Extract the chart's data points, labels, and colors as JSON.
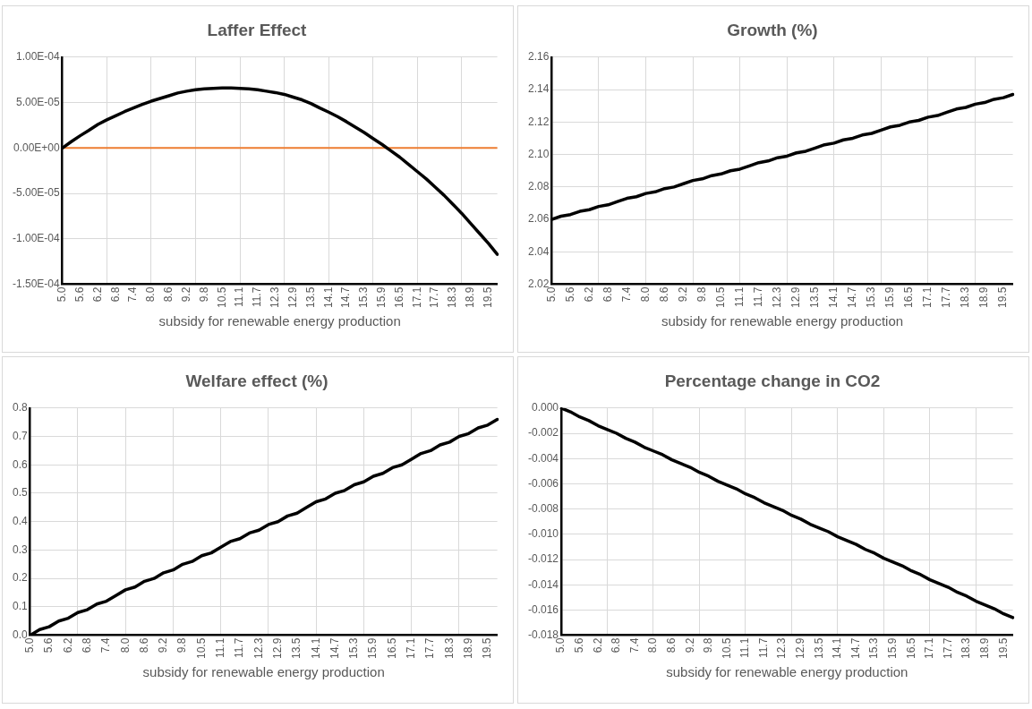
{
  "chart_data": [
    {
      "type": "line",
      "title": "Laffer Effect",
      "xlabel": "subsidy for renewable energy production",
      "categories": [
        "5.0",
        null,
        "5.6",
        null,
        "6.2",
        null,
        "6.8",
        null,
        "7.4",
        null,
        "8.0",
        null,
        "8.6",
        null,
        "9.2",
        null,
        "9.8",
        null,
        "10.5",
        null,
        "11.1",
        null,
        "11.7",
        null,
        "12.3",
        null,
        "12.9",
        null,
        "13.5",
        null,
        "14.1",
        null,
        "14.7",
        null,
        "15.3",
        null,
        "15.9",
        null,
        "16.5",
        null,
        "17.1",
        null,
        "17.7",
        null,
        "18.3",
        null,
        "18.9",
        null,
        "19.5",
        null
      ],
      "series": [
        {
          "color": "#000000",
          "values": [
            0,
            7e-06,
            1.35e-05,
            1.95e-05,
            2.6e-05,
            3.1e-05,
            3.55e-05,
            4e-05,
            4.4e-05,
            4.8e-05,
            5.15e-05,
            5.45e-05,
            5.75e-05,
            6.05e-05,
            6.25e-05,
            6.4e-05,
            6.5e-05,
            6.55e-05,
            6.6e-05,
            6.6e-05,
            6.55e-05,
            6.5e-05,
            6.4e-05,
            6.25e-05,
            6.1e-05,
            5.9e-05,
            5.6e-05,
            5.3e-05,
            4.9e-05,
            4.4e-05,
            3.95e-05,
            3.45e-05,
            2.9e-05,
            2.3e-05,
            1.7e-05,
            1.05e-05,
            4e-06,
            -3e-06,
            -1e-05,
            -1.8e-05,
            -2.6e-05,
            -3.4e-05,
            -4.3e-05,
            -5.2e-05,
            -6.2e-05,
            -7.2e-05,
            -8.3e-05,
            -9.4e-05,
            -0.000105,
            -0.000117
          ]
        }
      ],
      "ylim": [
        -0.00015,
        0.0001
      ],
      "yticks": [
        {
          "value": -0.00015,
          "label": "-1.50E-04"
        },
        {
          "value": -0.0001,
          "label": "-1.00E-04"
        },
        {
          "value": -5e-05,
          "label": "-5.00E-05"
        },
        {
          "value": 0,
          "label": "0.00E+00"
        },
        {
          "value": 5e-05,
          "label": "5.00E-05"
        },
        {
          "value": 0.0001,
          "label": "1.00E-04"
        }
      ],
      "ref_lines": [
        {
          "axis": "y",
          "value": 0,
          "color": "#ed7d31"
        }
      ],
      "grid": true,
      "legend": false,
      "marker": "none",
      "line_style": "solid"
    },
    {
      "type": "line",
      "title": "Growth (%)",
      "xlabel": "subsidy for renewable energy production",
      "categories": [
        "5.0",
        null,
        "5.6",
        null,
        "6.2",
        null,
        "6.8",
        null,
        "7.4",
        null,
        "8.0",
        null,
        "8.6",
        null,
        "9.2",
        null,
        "9.8",
        null,
        "10.5",
        null,
        "11.1",
        null,
        "11.7",
        null,
        "12.3",
        null,
        "12.9",
        null,
        "13.5",
        null,
        "14.1",
        null,
        "14.7",
        null,
        "15.3",
        null,
        "15.9",
        null,
        "16.5",
        null,
        "17.1",
        null,
        "17.7",
        null,
        "18.3",
        null,
        "18.9",
        null,
        "19.5",
        null
      ],
      "series": [
        {
          "color": "#000000",
          "values": [
            2.06,
            2.062,
            2.063,
            2.065,
            2.066,
            2.068,
            2.069,
            2.071,
            2.073,
            2.074,
            2.076,
            2.077,
            2.079,
            2.08,
            2.082,
            2.084,
            2.085,
            2.087,
            2.088,
            2.09,
            2.091,
            2.093,
            2.095,
            2.096,
            2.098,
            2.099,
            2.101,
            2.102,
            2.104,
            2.106,
            2.107,
            2.109,
            2.11,
            2.112,
            2.113,
            2.115,
            2.117,
            2.118,
            2.12,
            2.121,
            2.123,
            2.124,
            2.126,
            2.128,
            2.129,
            2.131,
            2.132,
            2.134,
            2.135,
            2.137
          ]
        }
      ],
      "ylim": [
        2.02,
        2.16
      ],
      "yticks": [
        {
          "value": 2.02,
          "label": "2.02"
        },
        {
          "value": 2.04,
          "label": "2.04"
        },
        {
          "value": 2.06,
          "label": "2.06"
        },
        {
          "value": 2.08,
          "label": "2.08"
        },
        {
          "value": 2.1,
          "label": "2.10"
        },
        {
          "value": 2.12,
          "label": "2.12"
        },
        {
          "value": 2.14,
          "label": "2.14"
        },
        {
          "value": 2.16,
          "label": "2.16"
        }
      ],
      "grid": true,
      "legend": false,
      "marker": "none",
      "line_style": "solid"
    },
    {
      "type": "line",
      "title": "Welfare effect (%)",
      "xlabel": "subsidy for renewable energy production",
      "categories": [
        "5.0",
        null,
        "5.6",
        null,
        "6.2",
        null,
        "6.8",
        null,
        "7.4",
        null,
        "8.0",
        null,
        "8.6",
        null,
        "9.2",
        null,
        "9.8",
        null,
        "10.5",
        null,
        "11.1",
        null,
        "11.7",
        null,
        "12.3",
        null,
        "12.9",
        null,
        "13.5",
        null,
        "14.1",
        null,
        "14.7",
        null,
        "15.3",
        null,
        "15.9",
        null,
        "16.5",
        null,
        "17.1",
        null,
        "17.7",
        null,
        "18.3",
        null,
        "18.9",
        null,
        "19.5",
        null
      ],
      "series": [
        {
          "color": "#000000",
          "values": [
            0,
            0.02,
            0.03,
            0.05,
            0.06,
            0.08,
            0.09,
            0.11,
            0.12,
            0.14,
            0.16,
            0.17,
            0.19,
            0.2,
            0.22,
            0.23,
            0.25,
            0.26,
            0.28,
            0.29,
            0.31,
            0.33,
            0.34,
            0.36,
            0.37,
            0.39,
            0.4,
            0.42,
            0.43,
            0.45,
            0.47,
            0.48,
            0.5,
            0.51,
            0.53,
            0.54,
            0.56,
            0.57,
            0.59,
            0.6,
            0.62,
            0.64,
            0.65,
            0.67,
            0.68,
            0.7,
            0.71,
            0.73,
            0.74,
            0.76
          ]
        }
      ],
      "ylim": [
        0,
        0.8
      ],
      "yticks": [
        {
          "value": 0,
          "label": "0.0"
        },
        {
          "value": 0.1,
          "label": "0.1"
        },
        {
          "value": 0.2,
          "label": "0.2"
        },
        {
          "value": 0.3,
          "label": "0.3"
        },
        {
          "value": 0.4,
          "label": "0.4"
        },
        {
          "value": 0.5,
          "label": "0.5"
        },
        {
          "value": 0.6,
          "label": "0.6"
        },
        {
          "value": 0.7,
          "label": "0.7"
        },
        {
          "value": 0.8,
          "label": "0.8"
        }
      ],
      "grid": true,
      "legend": false,
      "marker": "none",
      "line_style": "solid"
    },
    {
      "type": "line",
      "title": "Percentage change in CO2",
      "xlabel": "subsidy for renewable energy production",
      "categories": [
        "5.0",
        null,
        "5.6",
        null,
        "6.2",
        null,
        "6.8",
        null,
        "7.4",
        null,
        "8.0",
        null,
        "8.6",
        null,
        "9.2",
        null,
        "9.8",
        null,
        "10.5",
        null,
        "11.1",
        null,
        "11.7",
        null,
        "12.3",
        null,
        "12.9",
        null,
        "13.5",
        null,
        "14.1",
        null,
        "14.7",
        null,
        "15.3",
        null,
        "15.9",
        null,
        "16.5",
        null,
        "17.1",
        null,
        "17.7",
        null,
        "18.3",
        null,
        "18.9",
        null,
        "19.5",
        null
      ],
      "series": [
        {
          "color": "#000000",
          "values": [
            0,
            -0.0003,
            -0.0007,
            -0.001,
            -0.0014,
            -0.0017,
            -0.002,
            -0.0024,
            -0.0027,
            -0.0031,
            -0.0034,
            -0.0037,
            -0.0041,
            -0.0044,
            -0.0047,
            -0.0051,
            -0.0054,
            -0.0058,
            -0.0061,
            -0.0064,
            -0.0068,
            -0.0071,
            -0.0075,
            -0.0078,
            -0.0081,
            -0.0085,
            -0.0088,
            -0.0092,
            -0.0095,
            -0.0098,
            -0.0102,
            -0.0105,
            -0.0108,
            -0.0112,
            -0.0115,
            -0.0119,
            -0.0122,
            -0.0125,
            -0.0129,
            -0.0132,
            -0.0136,
            -0.0139,
            -0.0142,
            -0.0146,
            -0.0149,
            -0.0153,
            -0.0156,
            -0.0159,
            -0.0163,
            -0.0166
          ]
        }
      ],
      "ylim": [
        -0.018,
        0
      ],
      "yticks": [
        {
          "value": -0.018,
          "label": "-0.018"
        },
        {
          "value": -0.016,
          "label": "-0.016"
        },
        {
          "value": -0.014,
          "label": "-0.014"
        },
        {
          "value": -0.012,
          "label": "-0.012"
        },
        {
          "value": -0.01,
          "label": "-0.010"
        },
        {
          "value": -0.008,
          "label": "-0.008"
        },
        {
          "value": -0.006,
          "label": "-0.006"
        },
        {
          "value": -0.004,
          "label": "-0.004"
        },
        {
          "value": -0.002,
          "label": "-0.002"
        },
        {
          "value": 0,
          "label": "0.000"
        }
      ],
      "grid": true,
      "legend": false,
      "marker": "none",
      "line_style": "solid"
    }
  ]
}
